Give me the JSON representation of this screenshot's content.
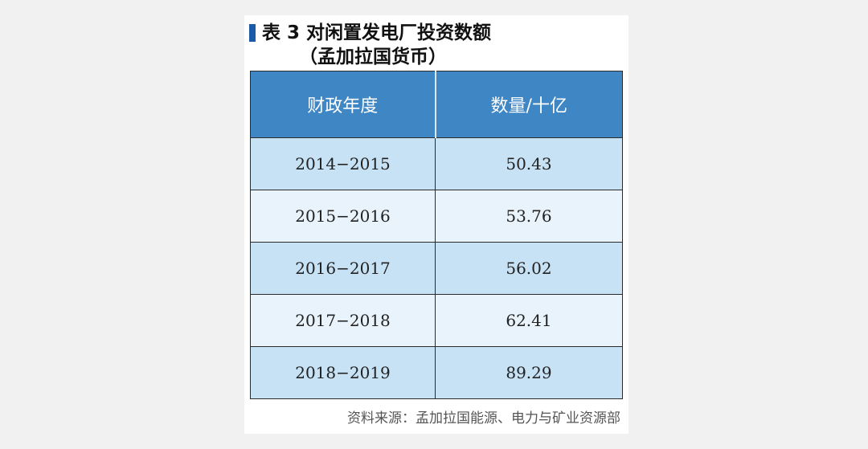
{
  "title": {
    "line1": "表 3  对闲置发电厂投资数额",
    "line2": "（孟加拉国货币）"
  },
  "table": {
    "headers": [
      "财政年度",
      "数量/十亿"
    ],
    "rows": [
      [
        "2014−2015",
        "50.43"
      ],
      [
        "2015−2016",
        "53.76"
      ],
      [
        "2016−2017",
        "56.02"
      ],
      [
        "2017−2018",
        "62.41"
      ],
      [
        "2018−2019",
        "89.29"
      ]
    ]
  },
  "source": "资料来源：孟加拉国能源、电力与矿业资源部",
  "colors": {
    "header_bg": "#3f86c5",
    "row_odd": "#c7e2f5",
    "row_even": "#e9f3fb",
    "title_marker": "#1a5aa8"
  }
}
